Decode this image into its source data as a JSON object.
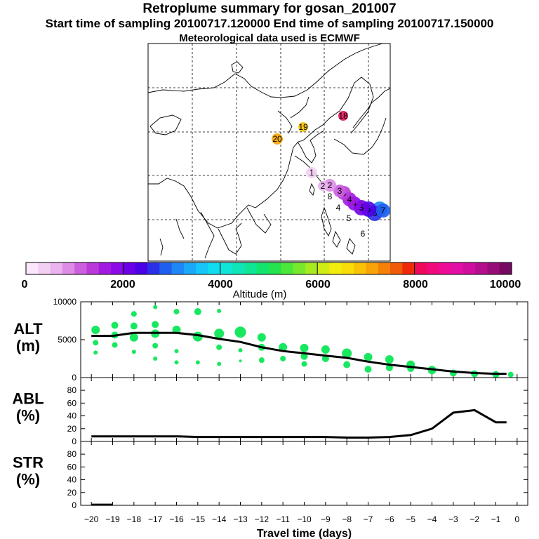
{
  "header": {
    "title": "Retroplume summary for gosan_201007",
    "sampling": "Start time of sampling 20100717.120000     End time of sampling 20100717.150000",
    "met": "Meteorological data used is ECMWF"
  },
  "map": {
    "plume_labels": [
      "1",
      "2",
      "2",
      "3",
      "3",
      "3",
      "4",
      "4",
      "4",
      "5",
      "5",
      "5",
      "6",
      "6",
      "7",
      "7",
      "8",
      "18",
      "19",
      "20"
    ]
  },
  "colorbar": {
    "label": "Altitude (m)",
    "ticks": [
      "0",
      "2000",
      "4000",
      "6000",
      "8000",
      "10000"
    ]
  },
  "chart_data": [
    {
      "type": "line",
      "panel": "ALT",
      "ylabel": "ALT\n(m)",
      "ylabel_lines": [
        "ALT",
        "(m)"
      ],
      "ylim": [
        0,
        10000
      ],
      "yticks": [
        "0",
        "5000",
        "10000"
      ],
      "x": [
        -20,
        -19,
        -18,
        -17,
        -16,
        -15,
        -14,
        -13,
        -12,
        -11,
        -10,
        -9,
        -8,
        -7,
        -6,
        -5,
        -4,
        -3,
        -2,
        -1,
        -0.5
      ],
      "series": [
        {
          "name": "mean altitude",
          "values": [
            5500,
            5500,
            5900,
            5900,
            5900,
            5600,
            5100,
            4700,
            4000,
            3500,
            3200,
            2900,
            2600,
            2100,
            1700,
            1400,
            1100,
            800,
            600,
            500,
            500
          ]
        }
      ],
      "clusters": [
        {
          "x": -19.8,
          "y": 6300,
          "size": 6
        },
        {
          "x": -19.8,
          "y": 4600,
          "size": 4
        },
        {
          "x": -19.8,
          "y": 3300,
          "size": 3
        },
        {
          "x": -18.9,
          "y": 6900,
          "size": 5
        },
        {
          "x": -18.9,
          "y": 5600,
          "size": 5
        },
        {
          "x": -18.9,
          "y": 4300,
          "size": 4
        },
        {
          "x": -18.0,
          "y": 8400,
          "size": 4
        },
        {
          "x": -18.0,
          "y": 6800,
          "size": 5
        },
        {
          "x": -18.0,
          "y": 5300,
          "size": 6
        },
        {
          "x": -18.0,
          "y": 3400,
          "size": 3
        },
        {
          "x": -17.0,
          "y": 9300,
          "size": 3
        },
        {
          "x": -17.0,
          "y": 7000,
          "size": 5
        },
        {
          "x": -17.0,
          "y": 5800,
          "size": 6
        },
        {
          "x": -17.0,
          "y": 4200,
          "size": 4
        },
        {
          "x": -17.0,
          "y": 2500,
          "size": 3
        },
        {
          "x": -16.0,
          "y": 8700,
          "size": 4
        },
        {
          "x": -16.0,
          "y": 6300,
          "size": 6
        },
        {
          "x": -16.0,
          "y": 3500,
          "size": 3
        },
        {
          "x": -16.0,
          "y": 2000,
          "size": 3
        },
        {
          "x": -15.0,
          "y": 8700,
          "size": 5
        },
        {
          "x": -15.0,
          "y": 5400,
          "size": 7
        },
        {
          "x": -15.0,
          "y": 2000,
          "size": 3
        },
        {
          "x": -14.0,
          "y": 8800,
          "size": 3
        },
        {
          "x": -14.0,
          "y": 5800,
          "size": 7
        },
        {
          "x": -14.0,
          "y": 4000,
          "size": 4
        },
        {
          "x": -14.0,
          "y": 1800,
          "size": 3
        },
        {
          "x": -13.0,
          "y": 6000,
          "size": 8
        },
        {
          "x": -13.0,
          "y": 3600,
          "size": 3
        },
        {
          "x": -13.0,
          "y": 2200,
          "size": 2
        },
        {
          "x": -12.0,
          "y": 5300,
          "size": 6
        },
        {
          "x": -12.0,
          "y": 4000,
          "size": 5
        },
        {
          "x": -12.0,
          "y": 2300,
          "size": 4
        },
        {
          "x": -11.0,
          "y": 4000,
          "size": 6
        },
        {
          "x": -11.0,
          "y": 2500,
          "size": 4
        },
        {
          "x": -10.0,
          "y": 3900,
          "size": 6
        },
        {
          "x": -10.0,
          "y": 2800,
          "size": 5
        },
        {
          "x": -10.0,
          "y": 1800,
          "size": 4
        },
        {
          "x": -9.0,
          "y": 3700,
          "size": 6
        },
        {
          "x": -9.0,
          "y": 2500,
          "size": 5
        },
        {
          "x": -8.0,
          "y": 3200,
          "size": 7
        },
        {
          "x": -8.0,
          "y": 1700,
          "size": 5
        },
        {
          "x": -7.0,
          "y": 2700,
          "size": 6
        },
        {
          "x": -7.0,
          "y": 1100,
          "size": 5
        },
        {
          "x": -6.0,
          "y": 2400,
          "size": 6
        },
        {
          "x": -6.0,
          "y": 1300,
          "size": 5
        },
        {
          "x": -5.0,
          "y": 1700,
          "size": 6
        },
        {
          "x": -5.0,
          "y": 1200,
          "size": 5
        },
        {
          "x": -4.0,
          "y": 1000,
          "size": 6
        },
        {
          "x": -3.0,
          "y": 600,
          "size": 5
        },
        {
          "x": -2.0,
          "y": 500,
          "size": 5
        },
        {
          "x": -1.0,
          "y": 400,
          "size": 5
        },
        {
          "x": -0.3,
          "y": 400,
          "size": 4
        }
      ]
    },
    {
      "type": "line",
      "panel": "ABL",
      "ylabel": "ABL\n(%)",
      "ylabel_lines": [
        "ABL",
        "(%)"
      ],
      "ylim": [
        0,
        90
      ],
      "yticks": [
        "0",
        "20",
        "40",
        "60",
        "80"
      ],
      "x": [
        -20,
        -19,
        -18,
        -17,
        -16,
        -15,
        -14,
        -13,
        -12,
        -11,
        -10,
        -9,
        -8,
        -7,
        -6,
        -5,
        -4,
        -3,
        -2,
        -1,
        -0.5
      ],
      "series": [
        {
          "name": "ABL fraction",
          "values": [
            8,
            8,
            8,
            8,
            8,
            7,
            7,
            7,
            7,
            7,
            7,
            7,
            6,
            6,
            7,
            10,
            20,
            45,
            49,
            30,
            30
          ]
        }
      ]
    },
    {
      "type": "line",
      "panel": "STR",
      "ylabel": "STR\n(%)",
      "ylabel_lines": [
        "STR",
        "(%)"
      ],
      "ylim": [
        0,
        90
      ],
      "yticks": [
        "0",
        "20",
        "40",
        "60",
        "80"
      ],
      "xlabel": "Travel time (days)",
      "xticks": [
        "-20",
        "-19",
        "-18",
        "-17",
        "-16",
        "-15",
        "-14",
        "-13",
        "-12",
        "-11",
        "-10",
        "-9",
        "-8",
        "-7",
        "-6",
        "-5",
        "-4",
        "-3",
        "-2",
        "-1",
        "0"
      ],
      "x": [
        -20,
        -19.5,
        -19
      ],
      "series": [
        {
          "name": "stratospheric fraction",
          "values": [
            1,
            1,
            1
          ]
        }
      ]
    }
  ]
}
